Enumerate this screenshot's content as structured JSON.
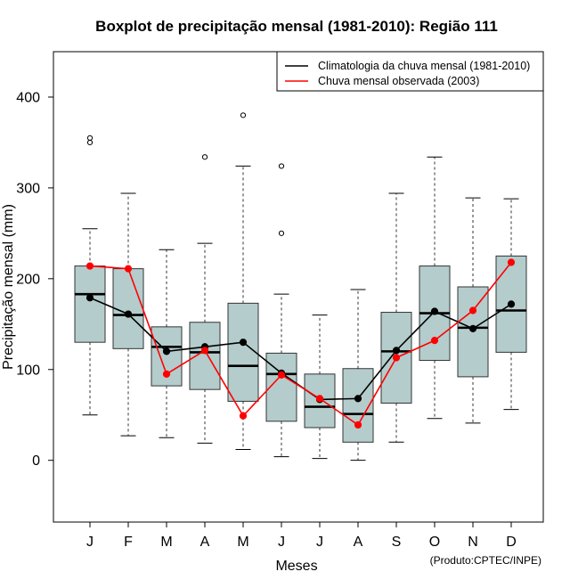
{
  "chart_data": {
    "type": "boxplot",
    "title": "Boxplot de precipitação mensal (1981-2010): Região 111",
    "xlabel": "Meses",
    "ylabel": "Precipitação mensal (mm)",
    "ylim": [
      -68,
      450
    ],
    "yticks": [
      0,
      100,
      200,
      300,
      400
    ],
    "credit": "(Produto:CPTEC/INPE)",
    "categories": [
      "J",
      "F",
      "M",
      "A",
      "M",
      "J",
      "J",
      "A",
      "S",
      "O",
      "N",
      "D"
    ],
    "boxes": [
      {
        "min": 50,
        "q1": 130,
        "median": 183,
        "q3": 214,
        "max": 255,
        "outliers": [
          350,
          355
        ]
      },
      {
        "min": 27,
        "q1": 123,
        "median": 160,
        "q3": 211,
        "max": 294,
        "outliers": []
      },
      {
        "min": 25,
        "q1": 82,
        "median": 125,
        "q3": 147,
        "max": 232,
        "outliers": []
      },
      {
        "min": 19,
        "q1": 78,
        "median": 119,
        "q3": 152,
        "max": 239,
        "outliers": [
          334
        ]
      },
      {
        "min": 12,
        "q1": 65,
        "median": 104,
        "q3": 173,
        "max": 324,
        "outliers": [
          380
        ]
      },
      {
        "min": 4,
        "q1": 43,
        "median": 95,
        "q3": 118,
        "max": 183,
        "outliers": [
          250,
          324
        ]
      },
      {
        "min": 2,
        "q1": 36,
        "median": 59,
        "q3": 95,
        "max": 160,
        "outliers": []
      },
      {
        "min": 0,
        "q1": 20,
        "median": 51,
        "q3": 101,
        "max": 188,
        "outliers": []
      },
      {
        "min": 20,
        "q1": 63,
        "median": 120,
        "q3": 163,
        "max": 294,
        "outliers": []
      },
      {
        "min": 46,
        "q1": 110,
        "median": 162,
        "q3": 214,
        "max": 334,
        "outliers": []
      },
      {
        "min": 41,
        "q1": 92,
        "median": 146,
        "q3": 191,
        "max": 289,
        "outliers": []
      },
      {
        "min": 56,
        "q1": 119,
        "median": 165,
        "q3": 225,
        "max": 288,
        "outliers": []
      }
    ],
    "series": [
      {
        "name": "Climatologia da chuva mensal (1981-2010)",
        "color": "#000000",
        "values": [
          179,
          161,
          120,
          125,
          130,
          96,
          67,
          68,
          121,
          164,
          145,
          172
        ]
      },
      {
        "name": "Chuva mensal observada (2003)",
        "color": "#ff0000",
        "values": [
          214,
          211,
          95,
          121,
          49,
          94,
          68,
          39,
          113,
          132,
          165,
          218
        ]
      }
    ],
    "box_fill": "#b4cccc",
    "legend_position": "top-right",
    "grid": false
  }
}
